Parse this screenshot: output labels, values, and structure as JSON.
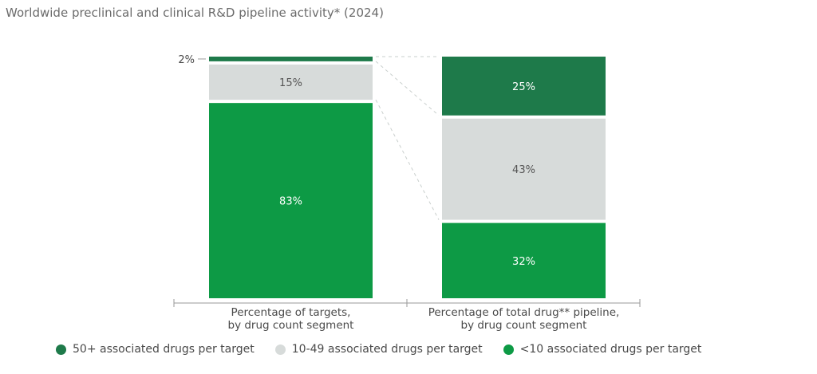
{
  "title": "Worldwide preclinical and clinical R&D pipeline activity* (2024)",
  "chart_data": {
    "type": "bar",
    "stacked": true,
    "orientation": "vertical",
    "categories": [
      [
        "Percentage of targets,",
        "by drug count segment"
      ],
      [
        "Percentage of total drug** pipeline,",
        "by drug count segment"
      ]
    ],
    "series": [
      {
        "name": "<10 associated drugs per target",
        "values": [
          83,
          32
        ],
        "labels": [
          "83%",
          "32%"
        ],
        "color": "#0d9a45",
        "label_color": "#ffffff"
      },
      {
        "name": "10-49 associated drugs per target",
        "values": [
          15,
          43
        ],
        "labels": [
          "15%",
          "43%"
        ],
        "color": "#d7dbda",
        "label_color": "#555555"
      },
      {
        "name": "50+ associated drugs per target",
        "values": [
          2,
          25
        ],
        "labels": [
          "2%",
          "25%"
        ],
        "color": "#1e7a4a",
        "label_color": "#ffffff"
      }
    ],
    "outside_labels": [
      {
        "category": 0,
        "series": 2,
        "text": "2%"
      }
    ],
    "ylim": [
      0,
      100
    ],
    "legend_position": "bottom",
    "legend": [
      {
        "label": "50+ associated drugs per target",
        "color": "#1e7a4a"
      },
      {
        "label": "10-49 associated drugs per target",
        "color": "#d7dbda"
      },
      {
        "label": "<10 associated drugs per target",
        "color": "#0d9a45"
      }
    ]
  }
}
